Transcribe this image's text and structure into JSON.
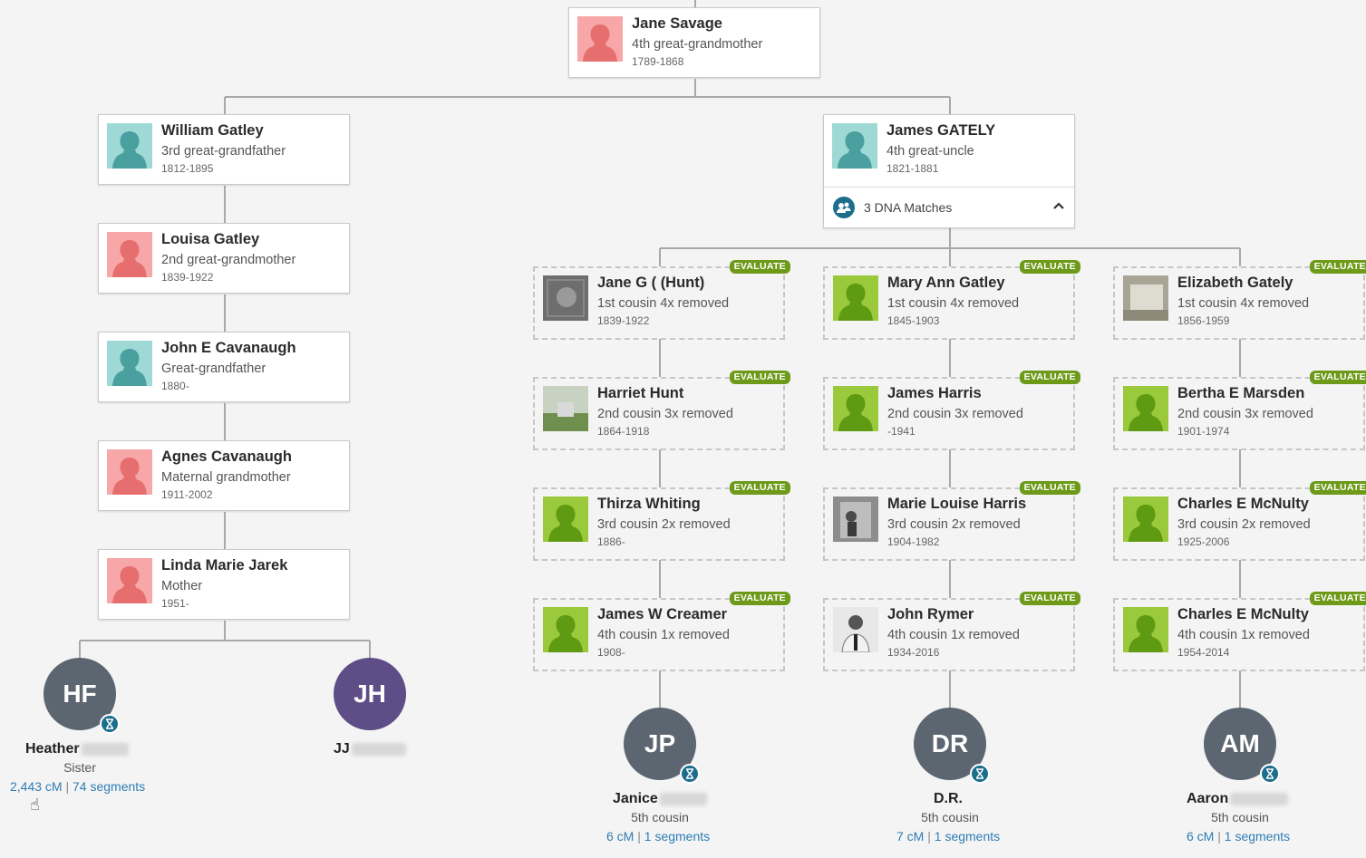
{
  "colors": {
    "female": "#f7a7a7",
    "female_figure": "#e66e6e",
    "male": "#9fd9d5",
    "male_figure": "#4a9f9f",
    "match": "#9ac93b",
    "match_figure": "#5f9a13",
    "evaluate": "#6d9a19",
    "link": "#2e7db4",
    "dna_teal": "#1c6e8c"
  },
  "ancestors": [
    {
      "name": "Jane Savage",
      "relation": "4th great-grandmother",
      "dates": "1789-1868",
      "avatar": "female-silhouette"
    },
    {
      "name": "William Gatley",
      "relation": "3rd great-grandfather",
      "dates": "1812-1895",
      "avatar": "male-silhouette"
    },
    {
      "name": "Louisa Gatley",
      "relation": "2nd great-grandmother",
      "dates": "1839-1922",
      "avatar": "female-silhouette"
    },
    {
      "name": "John E Cavanaugh",
      "relation": "Great-grandfather",
      "dates": "1880-",
      "avatar": "male-silhouette"
    },
    {
      "name": "Agnes Cavanaugh",
      "relation": "Maternal grandmother",
      "dates": "1911-2002",
      "avatar": "female-silhouette"
    },
    {
      "name": "Linda Marie Jarek",
      "relation": "Mother",
      "dates": "1951-",
      "avatar": "female-silhouette"
    }
  ],
  "uncle": {
    "name": "James GATELY",
    "relation": "4th great-uncle",
    "dates": "1821-1881",
    "avatar": "male-silhouette"
  },
  "dna_bar": {
    "text": "3 DNA Matches",
    "chevron": "chevron-up-icon"
  },
  "evaluate_label": "EVALUATE",
  "branches": [
    [
      {
        "name": "Jane G ( (Hunt)",
        "relation": "1st cousin 4x removed",
        "dates": "1839-1922",
        "avatar": "photo-gray"
      },
      {
        "name": "Harriet Hunt",
        "relation": "2nd cousin 3x removed",
        "dates": "1864-1918",
        "avatar": "photo-gravestone"
      },
      {
        "name": "Thirza Whiting",
        "relation": "3rd cousin 2x removed",
        "dates": "1886-",
        "avatar": "match-silhouette"
      },
      {
        "name": "James W Creamer",
        "relation": "4th cousin 1x removed",
        "dates": "1908-",
        "avatar": "match-silhouette"
      }
    ],
    [
      {
        "name": "Mary Ann Gatley",
        "relation": "1st cousin 4x removed",
        "dates": "1845-1903",
        "avatar": "match-silhouette"
      },
      {
        "name": "James Harris",
        "relation": "2nd cousin 3x removed",
        "dates": "-1941",
        "avatar": "match-silhouette"
      },
      {
        "name": "Marie Louise Harris",
        "relation": "3rd cousin 2x removed",
        "dates": "1904-1982",
        "avatar": "photo-bw"
      },
      {
        "name": "John Rymer",
        "relation": "4th cousin 1x removed",
        "dates": "1934-2016",
        "avatar": "photo-man"
      }
    ],
    [
      {
        "name": "Elizabeth Gately",
        "relation": "1st cousin 4x removed",
        "dates": "1856-1959",
        "avatar": "photo-headstone"
      },
      {
        "name": "Bertha E Marsden",
        "relation": "2nd cousin 3x removed",
        "dates": "1901-1974",
        "avatar": "match-silhouette"
      },
      {
        "name": "Charles E McNulty",
        "relation": "3rd cousin 2x removed",
        "dates": "1925-2006",
        "avatar": "match-silhouette"
      },
      {
        "name": "Charles E McNulty",
        "relation": "4th cousin 1x removed",
        "dates": "1954-2014",
        "avatar": "match-silhouette"
      }
    ]
  ],
  "people": [
    {
      "initials": "HF",
      "first_name": "Heather",
      "relation": "Sister",
      "cm": "2,443 cM",
      "segments": "74 segments",
      "dna_badge": true
    },
    {
      "initials": "JH",
      "first_name": "JJ",
      "relation": "",
      "cm": "",
      "segments": "",
      "dna_badge": false
    },
    {
      "initials": "JP",
      "first_name": "Janice",
      "relation": "5th cousin",
      "cm": "6 cM",
      "segments": "1 segments",
      "dna_badge": true
    },
    {
      "initials": "DR",
      "first_name": "D.R.",
      "relation": "5th cousin",
      "cm": "7 cM",
      "segments": "1 segments",
      "dna_badge": true
    },
    {
      "initials": "AM",
      "first_name": "Aaron",
      "relation": "5th cousin",
      "cm": "6 cM",
      "segments": "1 segments",
      "dna_badge": true
    }
  ],
  "separator": "|"
}
